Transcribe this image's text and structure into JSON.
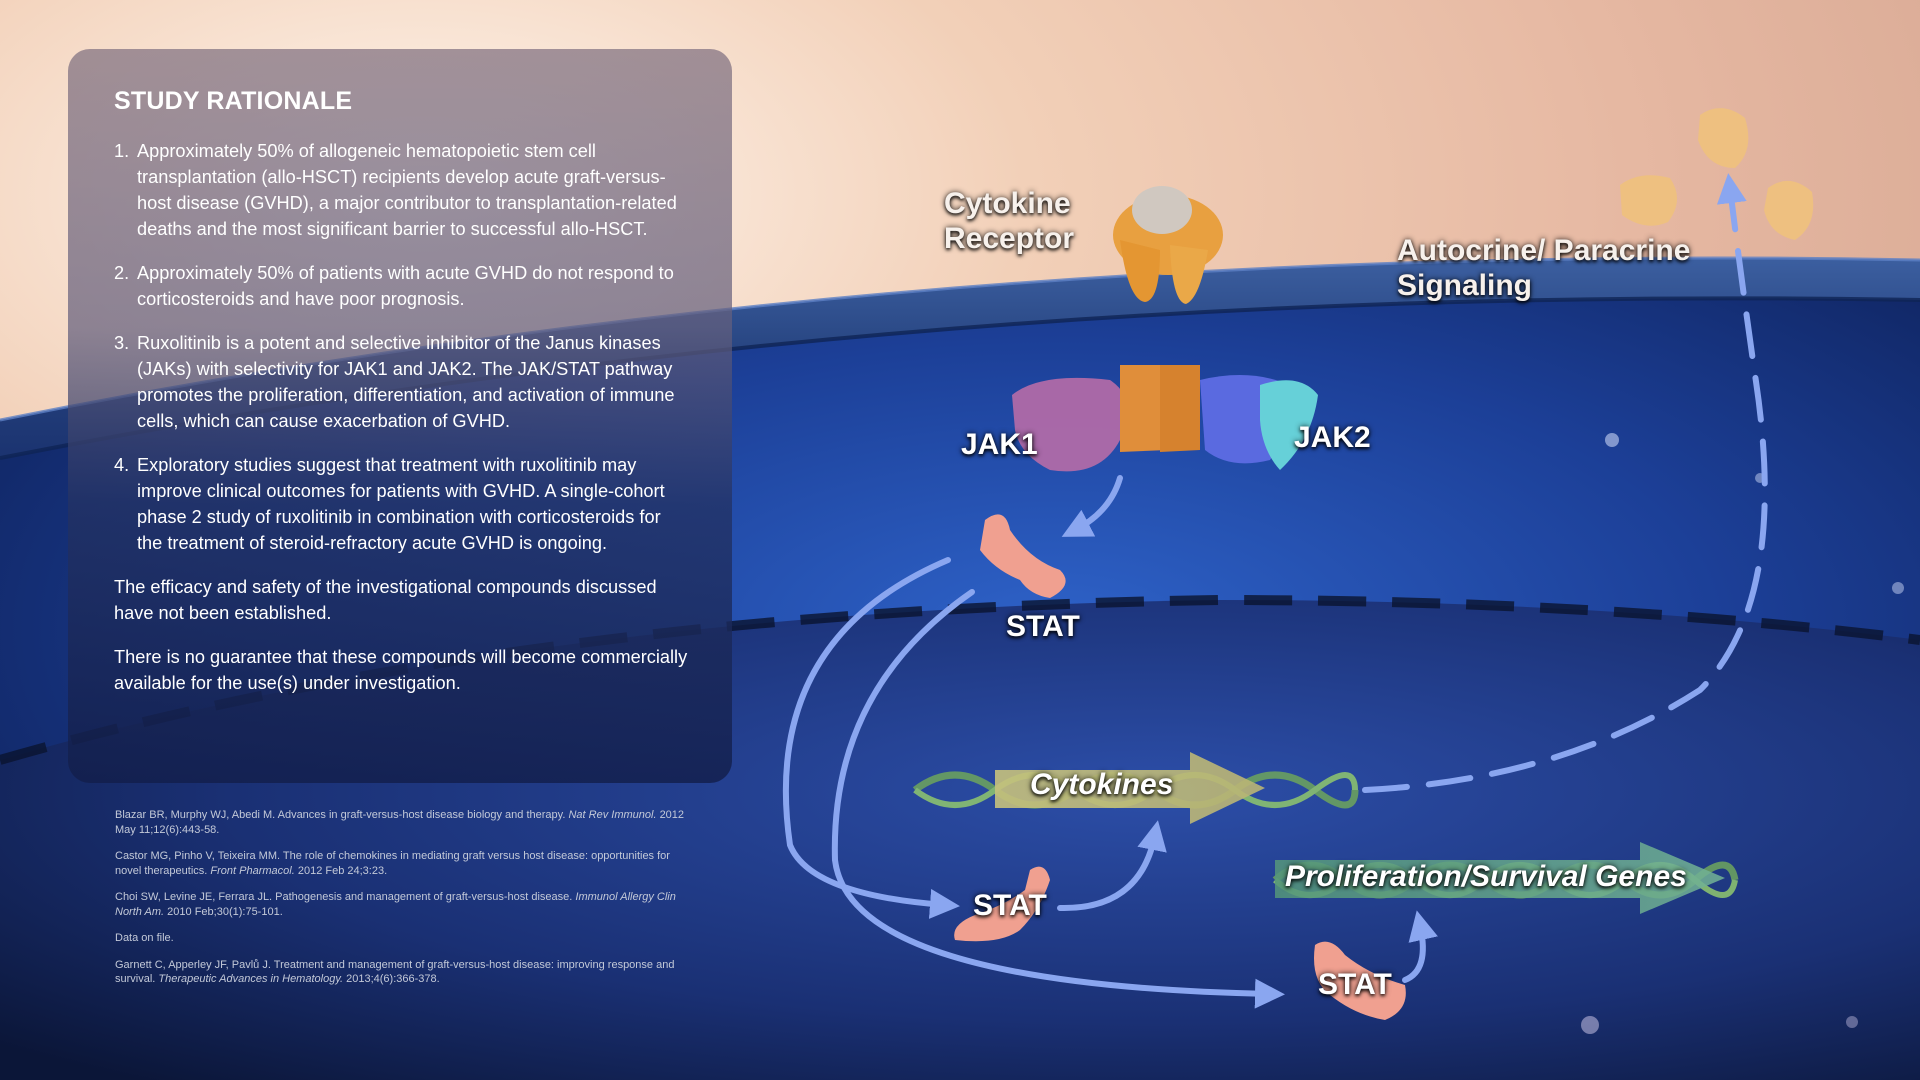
{
  "panel": {
    "title": "STUDY RATIONALE",
    "items": [
      {
        "num": "1.",
        "text": "Approximately 50% of allogeneic hematopoietic stem cell transplantation (allo-HSCT) recipients develop acute graft-versus-host disease (GVHD), a major contributor to transplantation-related deaths and the most significant barrier to successful allo-HSCT."
      },
      {
        "num": "2.",
        "text": "Approximately 50% of patients with acute GVHD do not respond to corticosteroids and have poor prognosis."
      },
      {
        "num": "3.",
        "text": "Ruxolitinib is a potent and selective inhibitor of the Janus kinases (JAKs) with selectivity for JAK1 and JAK2. The JAK/STAT pathway promotes the proliferation, differentiation, and activation of immune cells, which can cause exacerbation of GVHD."
      },
      {
        "num": "4.",
        "text": "Exploratory studies suggest that treatment with ruxolitinib may improve clinical outcomes for patients with GVHD. A single-cohort phase 2 study of ruxolitinib in combination with corticosteroids for the treatment of steroid-refractory acute GVHD is ongoing."
      }
    ],
    "disclaimer1": "The efficacy and safety of the investigational compounds discussed have not been established.",
    "disclaimer2": "There is no guarantee that these compounds will become commercially available for the use(s) under investigation."
  },
  "references": [
    {
      "text": "Blazar BR, Murphy WJ, Abedi M. Advances in graft-versus-host disease biology and therapy.",
      "journal": "Nat Rev Immunol.",
      "tail": "2012 May 11;12(6):443-58."
    },
    {
      "text": "Castor MG, Pinho V, Teixeira MM. The role of chemokines in mediating graft versus host disease: opportunities for novel therapeutics.",
      "journal": "Front Pharmacol.",
      "tail": "2012 Feb 24;3:23."
    },
    {
      "text": "Choi SW, Levine JE, Ferrara JL. Pathogenesis and management of graft-versus-host disease.",
      "journal": "Immunol Allergy Clin North Am.",
      "tail": "2010 Feb;30(1):75-101."
    },
    {
      "text": "Data on file.",
      "journal": "",
      "tail": ""
    },
    {
      "text": "Garnett C, Apperley JF, Pavlů J. Treatment and management of graft-versus-host disease: improving response and survival.",
      "journal": "Therapeutic Advances in Hematology.",
      "tail": "2013;4(6):366-378."
    }
  ],
  "diagram": {
    "receptor_line1": "Cytokine",
    "receptor_line2": "Receptor",
    "autocrine_line1": "Autocrine/ Paracrine",
    "autocrine_line2": "Signaling",
    "jak1": "JAK1",
    "jak2": "JAK2",
    "stat_top": "STAT",
    "stat_mid": "STAT",
    "stat_bottom": "STAT",
    "cytokines_gene": "Cytokines",
    "prolif_gene": "Proliferation/Survival Genes"
  },
  "colors": {
    "arrow": "#8aa6f0",
    "protein_orange": "#e8a040",
    "jak1_purple": "#b06aa8",
    "jak2_blue": "#5a6ae0",
    "stat_salmon": "#f0a090",
    "dna_green": "#6aa060"
  }
}
